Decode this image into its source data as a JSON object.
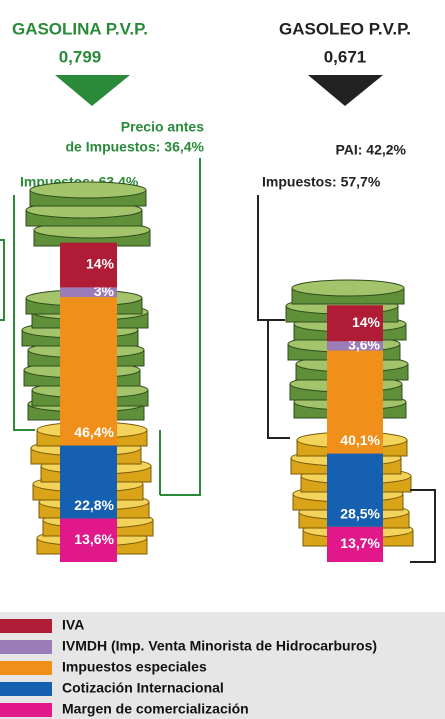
{
  "chart_data": {
    "type": "bar",
    "stacked": true,
    "categories": [
      "GASOLINA P.V.P.",
      "GASOLEO P.V.P."
    ],
    "prices": [
      "0,799",
      "0,671"
    ],
    "annotations": {
      "gasolina_pai": [
        "Precio antes",
        "de Impuestos: 36,4%"
      ],
      "gasolina_impuestos": "Impuestos: 63,4%",
      "gasoleo_pai": "PAI: 42,2%",
      "gasoleo_impuestos": "Impuestos: 57,7%"
    },
    "series": [
      {
        "name": "IVA",
        "color": "#b01c35",
        "values": [
          14,
          14
        ],
        "value_labels": [
          "14%",
          "14%"
        ]
      },
      {
        "name": "IVMDH (Imp. Venta Minorista de Hidrocarburos)",
        "color": "#9b7bb8",
        "values": [
          3,
          3.6
        ],
        "value_labels": [
          "3%",
          "3,6%"
        ]
      },
      {
        "name": "Impuestos especiales",
        "color": "#f0901a",
        "values": [
          46.4,
          40.1
        ],
        "value_labels": [
          "46,4%",
          "40,1%"
        ]
      },
      {
        "name": "Cotización Internacional",
        "color": "#1560b0",
        "values": [
          22.8,
          28.5
        ],
        "value_labels": [
          "22,8%",
          "28,5%"
        ]
      },
      {
        "name": "Margen de comercialización",
        "color": "#e0188a",
        "values": [
          13.6,
          13.7
        ],
        "value_labels": [
          "13,6%",
          "13,7%"
        ]
      }
    ]
  }
}
